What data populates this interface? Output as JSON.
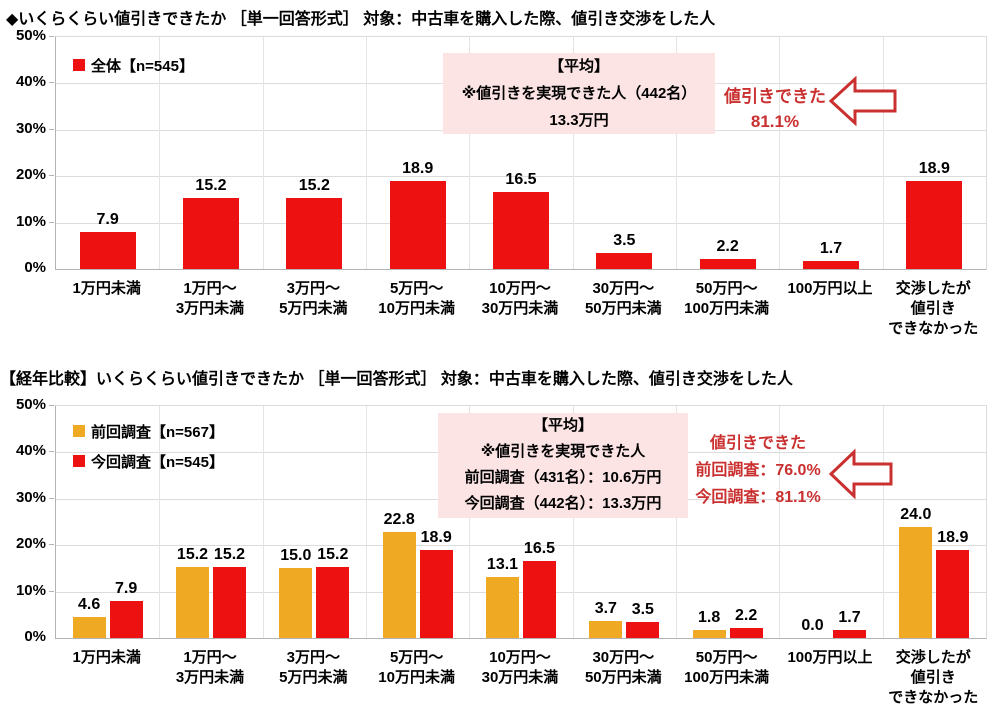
{
  "colors": {
    "bar_red": "#ee1111",
    "bar_orange": "#efa923",
    "annotation_bg": "#fce4e4",
    "annotation_red": "#c9302f",
    "grid": "#dcdcdc"
  },
  "chart_data": [
    {
      "type": "bar",
      "title": "◆いくらくらい値引きできたか ［単一回答形式］ 対象：中古車を購入した際、値引き交渉をした人",
      "ylim": [
        0,
        50
      ],
      "ytick_step": 10,
      "ytick_suffix": "%",
      "grid": true,
      "legend_position": "top-left",
      "categories": [
        [
          "1万円未満"
        ],
        [
          "1万円～",
          "3万円未満"
        ],
        [
          "3万円～",
          "5万円未満"
        ],
        [
          "5万円～",
          "10万円未満"
        ],
        [
          "10万円～",
          "30万円未満"
        ],
        [
          "30万円～",
          "50万円未満"
        ],
        [
          "50万円～",
          "100万円未満"
        ],
        [
          "100万円以上"
        ],
        [
          "交渉したが",
          "値引き",
          "できなかった"
        ]
      ],
      "series": [
        {
          "name": "全体【n=545】",
          "color": "#ee1111",
          "values": [
            7.9,
            15.2,
            15.2,
            18.9,
            16.5,
            3.5,
            2.2,
            1.7,
            18.9
          ]
        }
      ],
      "annotation_box": [
        "【平均】",
        "※値引きを実現できた人（442名）",
        "13.3万円"
      ],
      "callout": [
        "値引きできた",
        "81.1%"
      ]
    },
    {
      "type": "bar",
      "title": "【経年比較】いくらくらい値引きできたか ［単一回答形式］ 対象：中古車を購入した際、値引き交渉をした人",
      "ylim": [
        0,
        50
      ],
      "ytick_step": 10,
      "ytick_suffix": "%",
      "grid": true,
      "legend_position": "top-left",
      "categories": [
        [
          "1万円未満"
        ],
        [
          "1万円～",
          "3万円未満"
        ],
        [
          "3万円～",
          "5万円未満"
        ],
        [
          "5万円～",
          "10万円未満"
        ],
        [
          "10万円～",
          "30万円未満"
        ],
        [
          "30万円～",
          "50万円未満"
        ],
        [
          "50万円～",
          "100万円未満"
        ],
        [
          "100万円以上"
        ],
        [
          "交渉したが",
          "値引き",
          "できなかった"
        ]
      ],
      "series": [
        {
          "name": "前回調査【n=567】",
          "color": "#efa923",
          "values": [
            4.6,
            15.2,
            15.0,
            22.8,
            13.1,
            3.7,
            1.8,
            0.0,
            24.0
          ]
        },
        {
          "name": "今回調査【n=545】",
          "color": "#ee1111",
          "values": [
            7.9,
            15.2,
            15.2,
            18.9,
            16.5,
            3.5,
            2.2,
            1.7,
            18.9
          ]
        }
      ],
      "annotation_box": [
        "【平均】",
        "※値引きを実現できた人",
        "前回調査（431名）：10.6万円",
        "今回調査（442名）：13.3万円"
      ],
      "callout": [
        "値引きできた",
        "前回調査：76.0%",
        "今回調査：81.1%"
      ]
    }
  ]
}
